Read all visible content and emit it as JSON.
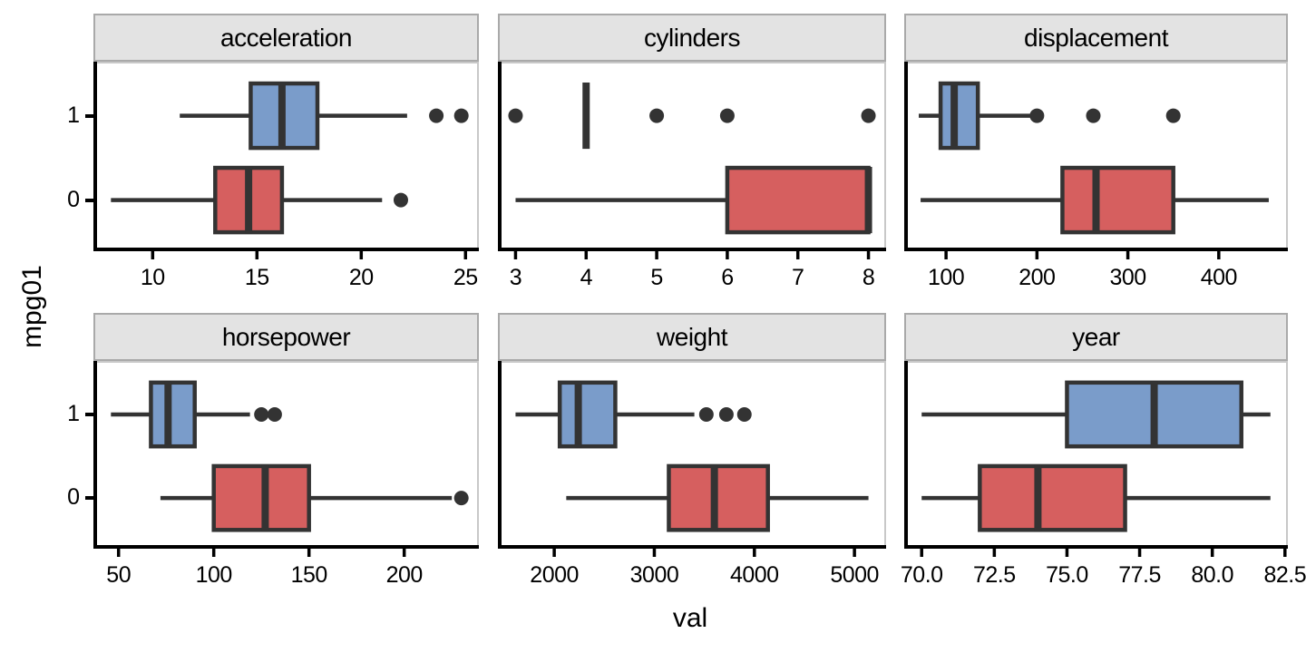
{
  "figure": {
    "x_label": "val",
    "y_label": "mpg01",
    "y_categories": [
      "1",
      "0"
    ]
  },
  "colors": {
    "blue": "#7a9cca",
    "red": "#d65f5f",
    "stroke": "#333333",
    "axis_line": "#000000",
    "panel_border": "#c8c8c8",
    "strip_bg": "#e3e3e3",
    "strip_border": "#a9a9a9",
    "text": "#000000"
  },
  "chart_data": [
    {
      "type": "boxplot",
      "facet": "acceleration",
      "x_domain": [
        7.16,
        25.64
      ],
      "x_ticks": [
        10,
        15,
        20,
        25
      ],
      "tick_labels": [
        "10",
        "15",
        "20",
        "25"
      ],
      "series": [
        {
          "group": "1",
          "fill": "blue",
          "whisker_low": 11.3,
          "q1": 14.7,
          "median": 16.2,
          "q3": 17.9,
          "whisker_high": 22.2,
          "outliers": [
            23.6,
            24.8
          ]
        },
        {
          "group": "0",
          "fill": "red",
          "whisker_low": 8.0,
          "q1": 13.0,
          "median": 14.6,
          "q3": 16.2,
          "whisker_high": 21.0,
          "outliers": [
            21.9
          ]
        }
      ]
    },
    {
      "type": "boxplot",
      "facet": "cylinders",
      "x_domain": [
        2.75,
        8.25
      ],
      "x_ticks": [
        3,
        4,
        5,
        6,
        7,
        8
      ],
      "tick_labels": [
        "3",
        "4",
        "5",
        "6",
        "7",
        "8"
      ],
      "series": [
        {
          "group": "1",
          "fill": "blue",
          "whisker_low": 4,
          "q1": 4,
          "median": 4,
          "q3": 4,
          "whisker_high": 4,
          "outliers": [
            3,
            5,
            6,
            8
          ]
        },
        {
          "group": "0",
          "fill": "red",
          "whisker_low": 3,
          "q1": 6,
          "median": 8,
          "q3": 8,
          "whisker_high": 8,
          "outliers": []
        }
      ]
    },
    {
      "type": "boxplot",
      "facet": "displacement",
      "x_domain": [
        54,
        476
      ],
      "x_ticks": [
        100,
        200,
        300,
        400
      ],
      "tick_labels": [
        "100",
        "200",
        "300",
        "400"
      ],
      "series": [
        {
          "group": "1",
          "fill": "blue",
          "whisker_low": 70,
          "q1": 94,
          "median": 109,
          "q3": 135,
          "whisker_high": 196,
          "outliers": [
            200,
            262,
            350
          ]
        },
        {
          "group": "0",
          "fill": "red",
          "whisker_low": 72,
          "q1": 228,
          "median": 265,
          "q3": 350,
          "whisker_high": 455,
          "outliers": []
        }
      ]
    },
    {
      "type": "boxplot",
      "facet": "horsepower",
      "x_domain": [
        36.8,
        239.2
      ],
      "x_ticks": [
        50,
        100,
        150,
        200
      ],
      "tick_labels": [
        "50",
        "100",
        "150",
        "200"
      ],
      "series": [
        {
          "group": "1",
          "fill": "blue",
          "whisker_low": 46,
          "q1": 67,
          "median": 76,
          "q3": 90,
          "whisker_high": 119,
          "outliers": [
            125,
            132
          ]
        },
        {
          "group": "0",
          "fill": "red",
          "whisker_low": 72,
          "q1": 100,
          "median": 127,
          "q3": 150,
          "whisker_high": 225,
          "outliers": [
            230
          ]
        }
      ]
    },
    {
      "type": "boxplot",
      "facet": "weight",
      "x_domain": [
        1437,
        5316
      ],
      "x_ticks": [
        2000,
        3000,
        4000,
        5000
      ],
      "tick_labels": [
        "2000",
        "3000",
        "4000",
        "5000"
      ],
      "series": [
        {
          "group": "1",
          "fill": "blue",
          "whisker_low": 1613,
          "q1": 2055,
          "median": 2240,
          "q3": 2610,
          "whisker_high": 3400,
          "outliers": [
            3520,
            3720,
            3900
          ]
        },
        {
          "group": "0",
          "fill": "red",
          "whisker_low": 2120,
          "q1": 3145,
          "median": 3600,
          "q3": 4135,
          "whisker_high": 5140,
          "outliers": []
        }
      ]
    },
    {
      "type": "boxplot",
      "facet": "year",
      "x_domain": [
        69.4,
        82.6
      ],
      "x_ticks": [
        70,
        72.5,
        75,
        77.5,
        80,
        82.5
      ],
      "tick_labels": [
        "70.0",
        "72.5",
        "75.0",
        "77.5",
        "80.0",
        "82.5"
      ],
      "series": [
        {
          "group": "1",
          "fill": "blue",
          "whisker_low": 70,
          "q1": 75,
          "median": 78,
          "q3": 81,
          "whisker_high": 82,
          "outliers": []
        },
        {
          "group": "0",
          "fill": "red",
          "whisker_low": 70,
          "q1": 72,
          "median": 74,
          "q3": 77,
          "whisker_high": 82,
          "outliers": []
        }
      ]
    }
  ]
}
